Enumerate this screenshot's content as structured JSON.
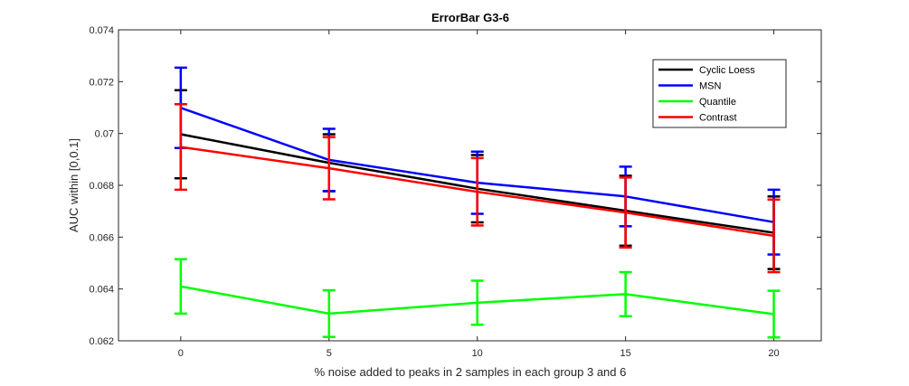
{
  "chart_data": {
    "type": "line",
    "title": "ErrorBar G3-6",
    "xlabel": "% noise added to peaks in 2 samples in each group 3 and 6",
    "ylabel": "AUC within [0,0.1]",
    "x": [
      0,
      5,
      10,
      15,
      20
    ],
    "x_tick_labels": [
      "0",
      "5",
      "10",
      "15",
      "20"
    ],
    "y_tick_labels": [
      "0.062",
      "0.064",
      "0.066",
      "0.068",
      "0.07",
      "0.072",
      "0.074"
    ],
    "y_ticks": [
      0.062,
      0.064,
      0.066,
      0.068,
      0.07,
      0.072,
      0.074
    ],
    "xlim": [
      -2.1,
      21.6
    ],
    "ylim": [
      0.062,
      0.074
    ],
    "grid": false,
    "legend_position": "top-right",
    "series": [
      {
        "name": "Cyclic Loess",
        "color": "#000000",
        "values": [
          0.06997,
          0.06887,
          0.06787,
          0.06702,
          0.06617
        ],
        "errors": [
          0.0017,
          0.0011,
          0.0013,
          0.00135,
          0.0014
        ]
      },
      {
        "name": "MSN",
        "color": "#0000ff",
        "values": [
          0.07099,
          0.06898,
          0.0681,
          0.06757,
          0.06658
        ],
        "errors": [
          0.00155,
          0.0012,
          0.0012,
          0.00115,
          0.00125
        ]
      },
      {
        "name": "Quantile",
        "color": "#00ff00",
        "values": [
          0.0641,
          0.06305,
          0.06347,
          0.0638,
          0.06303
        ],
        "errors": [
          0.00105,
          0.0009,
          0.00085,
          0.00085,
          0.0009
        ]
      },
      {
        "name": "Contrast",
        "color": "#ff0000",
        "values": [
          0.06948,
          0.06866,
          0.06775,
          0.06695,
          0.06605
        ],
        "errors": [
          0.00165,
          0.0012,
          0.0013,
          0.00135,
          0.0014
        ]
      }
    ]
  }
}
